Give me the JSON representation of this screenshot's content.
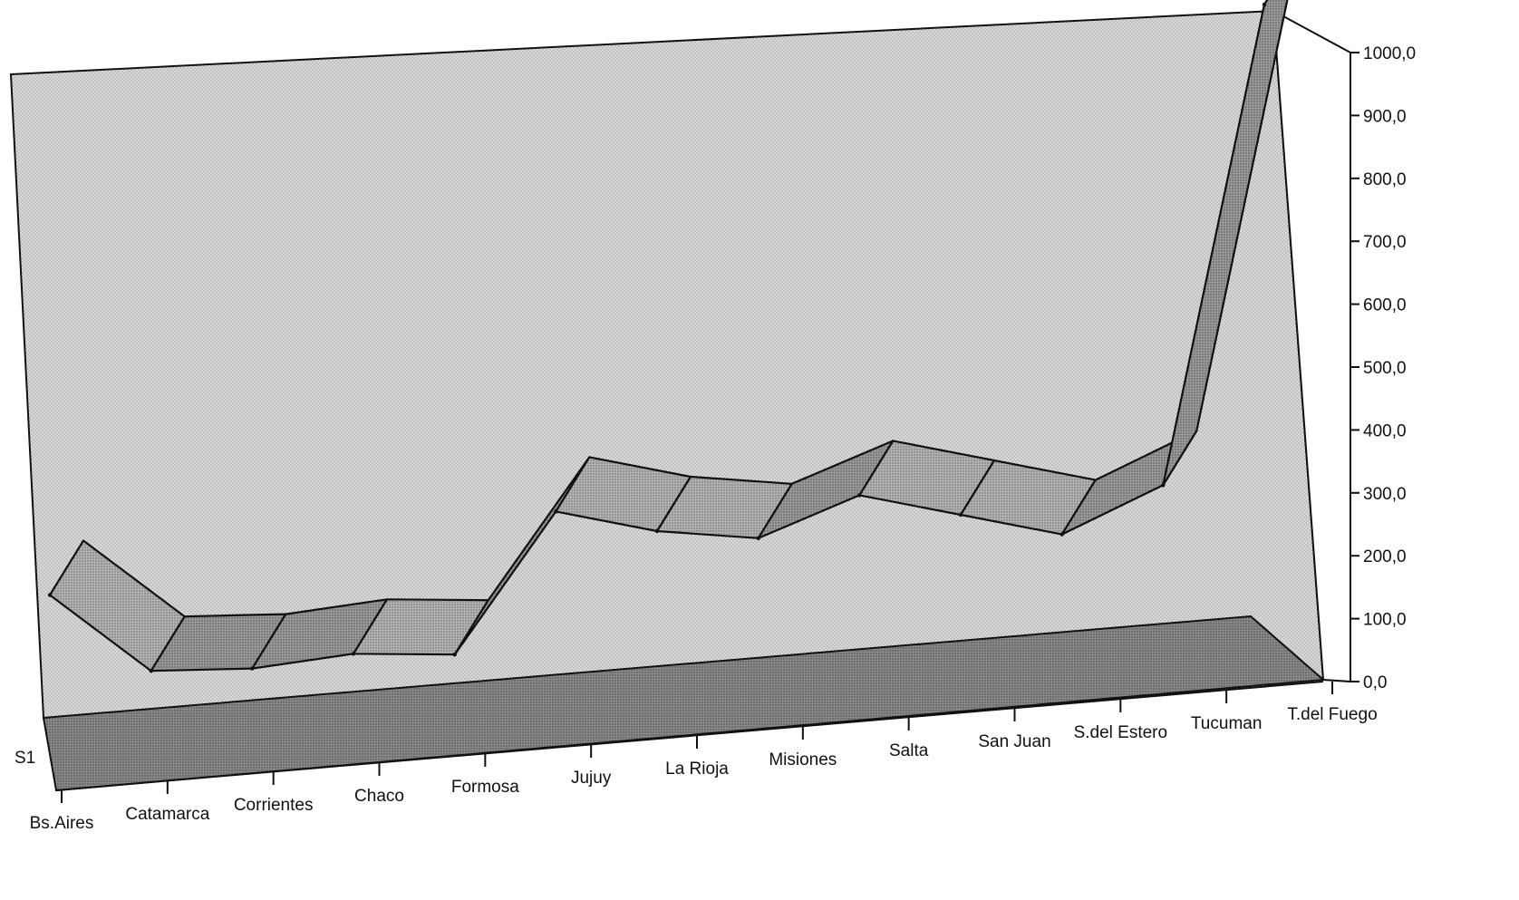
{
  "chart_data": {
    "type": "line",
    "categories": [
      "Bs.Aires",
      "Catamarca",
      "Corrientes",
      "Chaco",
      "Formosa",
      "Jujuy",
      "La Rioja",
      "Misiones",
      "Salta",
      "San Juan",
      "S.del Estero",
      "Tucuman",
      "T.del Fuego"
    ],
    "series": [
      {
        "name": "S1",
        "values": [
          150,
          20,
          15,
          30,
          20,
          240,
          200,
          180,
          240,
          200,
          160,
          230,
          990
        ]
      }
    ],
    "ylim": [
      0,
      1000
    ],
    "yticks": [
      "0,0",
      "100,0",
      "200,0",
      "300,0",
      "400,0",
      "500,0",
      "600,0",
      "700,0",
      "800,0",
      "900,0",
      "1000,0"
    ],
    "title": "",
    "xlabel": "",
    "ylabel": "",
    "grid": false,
    "style": "3d-ribbon",
    "colors": {
      "back_wall": "#d2d2d2",
      "floor": "#7e7e7e",
      "ribbon_top": "#b5b5b5",
      "ribbon_side": "#9a9a9a",
      "outline": "#111111"
    }
  }
}
